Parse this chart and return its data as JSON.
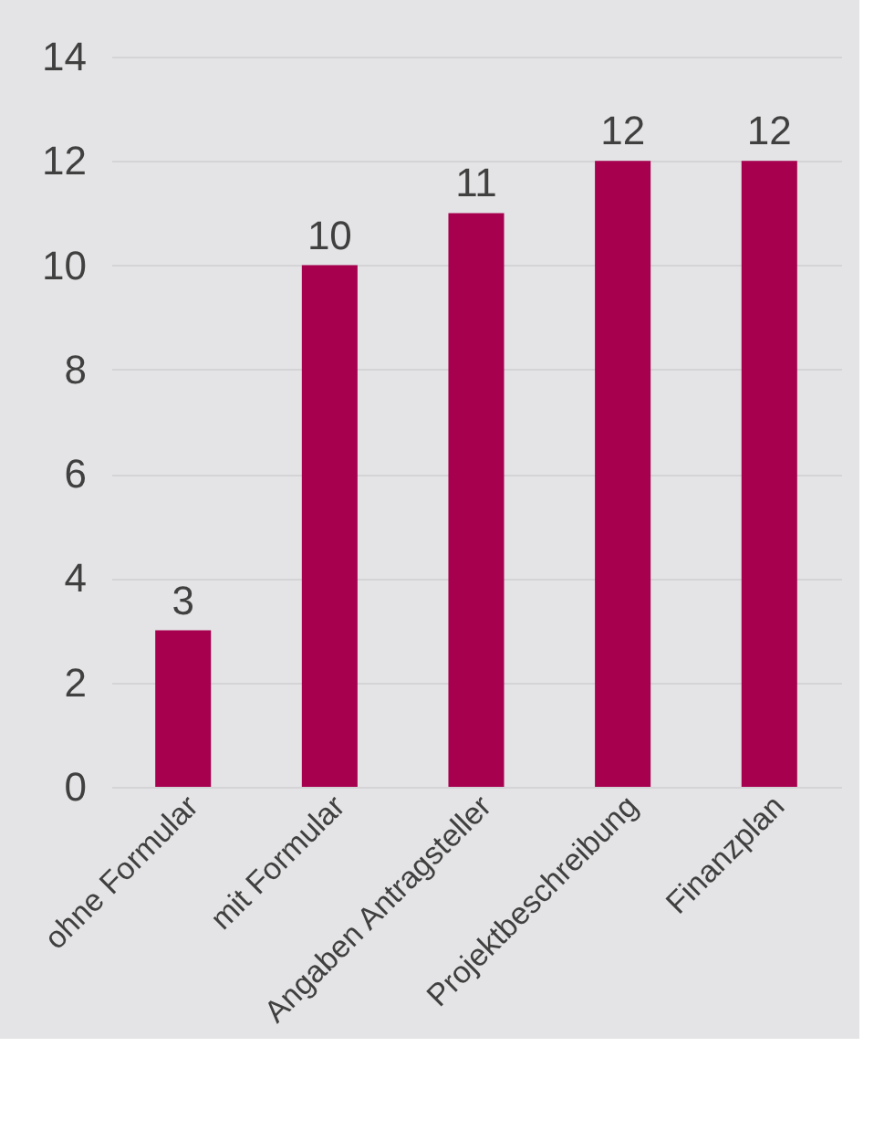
{
  "chart_data": {
    "type": "bar",
    "categories": [
      "ohne Formular",
      "mit Formular",
      "Angaben Antragsteller",
      "Projektbeschreibung",
      "Finanzplan"
    ],
    "values": [
      3,
      10,
      11,
      12,
      12
    ],
    "color": "#a6004f",
    "ylim": [
      0,
      14
    ],
    "yticks": [
      0,
      2,
      4,
      6,
      8,
      10,
      12,
      14
    ],
    "grid": "y",
    "data_labels": true
  }
}
